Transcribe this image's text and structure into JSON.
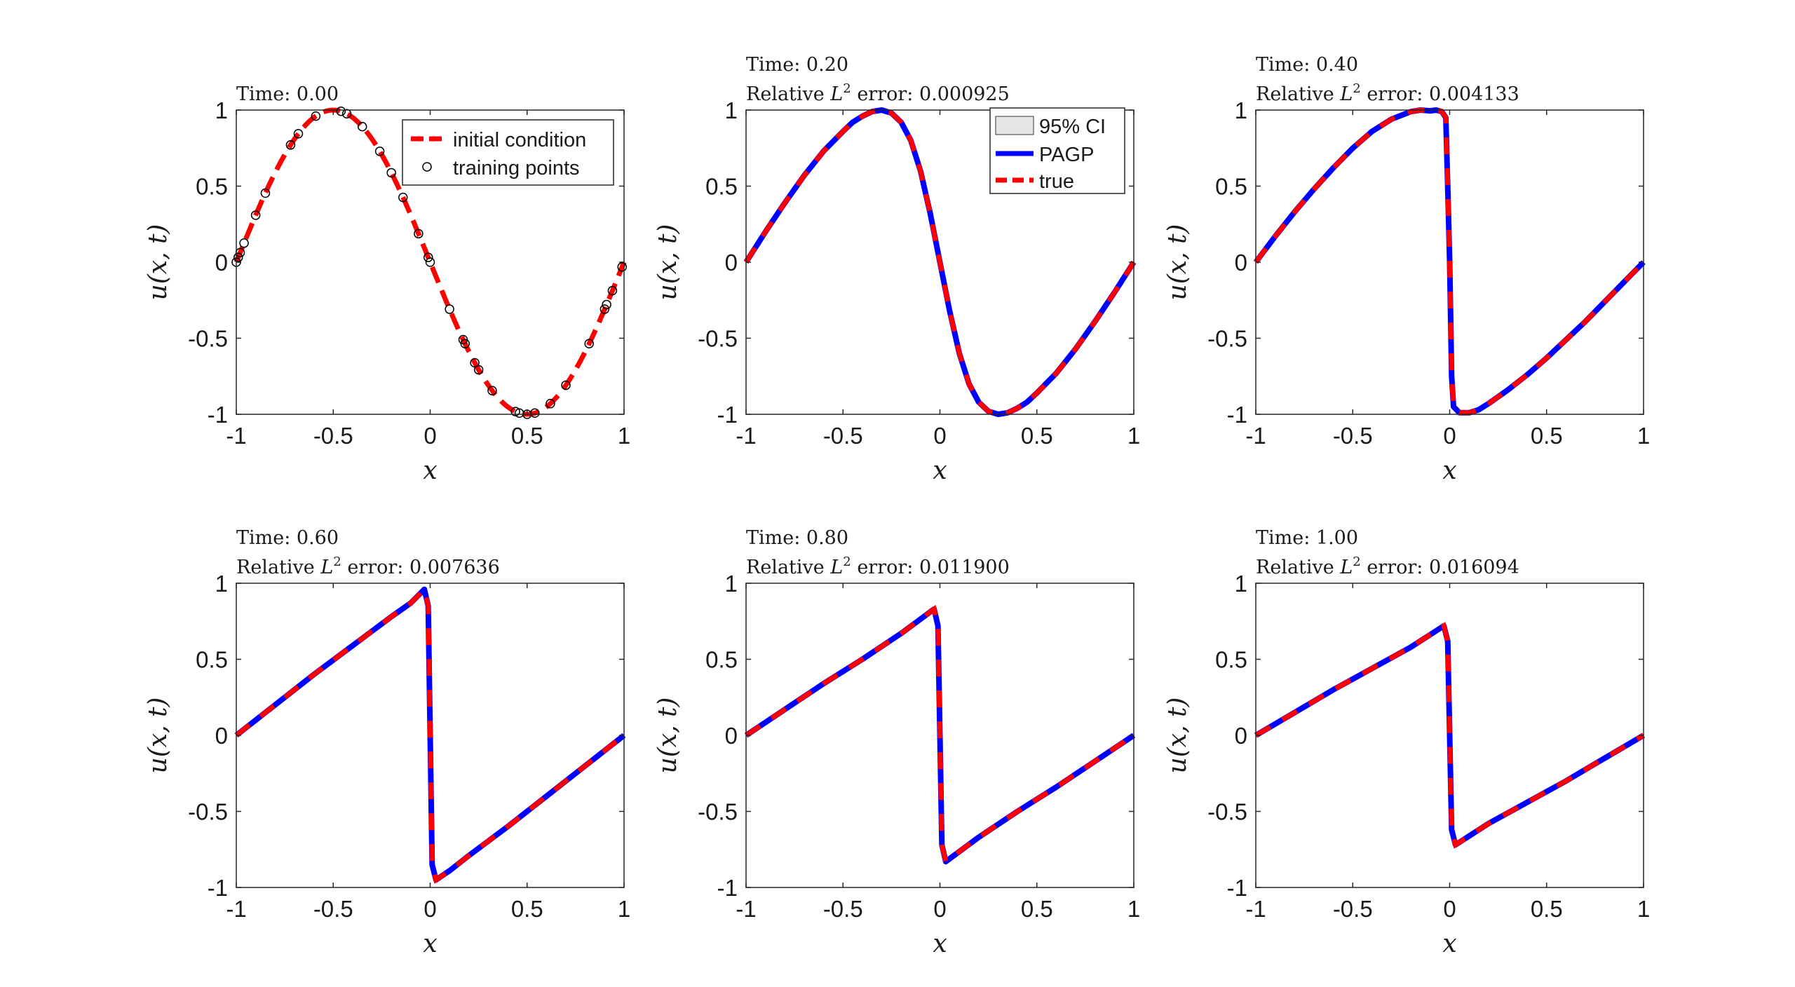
{
  "chart_data": [
    {
      "type": "line",
      "title_time": "Time: 0.00",
      "xlabel": "x",
      "ylabel": "u(x, t)",
      "xlim": [
        -1,
        1
      ],
      "ylim": [
        -1,
        1
      ],
      "xticks": [
        "-1",
        "-0.5",
        "0",
        "0.5",
        "1"
      ],
      "yticks": [
        "-1",
        "-0.5",
        "0",
        "0.5",
        "1"
      ],
      "legend": [
        "initial condition",
        "training points"
      ],
      "series": [
        {
          "name": "initial condition",
          "kind": "sine"
        },
        {
          "name": "training points",
          "kind": "scatter",
          "x": [
            -1.0,
            -0.99,
            -0.98,
            -0.96,
            -0.9,
            -0.85,
            -0.72,
            -0.68,
            -0.59,
            -0.46,
            -0.43,
            -0.35,
            -0.26,
            -0.2,
            -0.14,
            -0.06,
            -0.01,
            0.0,
            0.1,
            0.17,
            0.18,
            0.23,
            0.25,
            0.32,
            0.44,
            0.46,
            0.5,
            0.54,
            0.62,
            0.7,
            0.82,
            0.9,
            0.91,
            0.94,
            0.99
          ]
        }
      ]
    },
    {
      "type": "line",
      "title_time": "Time: 0.20",
      "title_error": "Relative L² error: 0.000925",
      "xlabel": "x",
      "ylabel": "u(x, t)",
      "xlim": [
        -1,
        1
      ],
      "ylim": [
        -1,
        1
      ],
      "xticks": [
        "-1",
        "-0.5",
        "0",
        "0.5",
        "1"
      ],
      "yticks": [
        "-1",
        "-0.5",
        "0",
        "0.5",
        "1"
      ],
      "legend": [
        "95% CI",
        "PAGP",
        "true"
      ],
      "series": [
        {
          "name": "PAGP"
        },
        {
          "name": "true"
        }
      ],
      "x": [
        -1,
        -0.9,
        -0.8,
        -0.7,
        -0.6,
        -0.5,
        -0.45,
        -0.4,
        -0.35,
        -0.3,
        -0.25,
        -0.2,
        -0.15,
        -0.1,
        -0.05,
        0,
        0.05,
        0.1,
        0.15,
        0.2,
        0.25,
        0.3,
        0.35,
        0.4,
        0.45,
        0.5,
        0.6,
        0.7,
        0.8,
        0.9,
        1
      ],
      "y": [
        0,
        0.2,
        0.39,
        0.57,
        0.73,
        0.86,
        0.92,
        0.96,
        0.99,
        1.0,
        0.98,
        0.92,
        0.8,
        0.6,
        0.32,
        0,
        -0.32,
        -0.6,
        -0.8,
        -0.92,
        -0.98,
        -1.0,
        -0.99,
        -0.96,
        -0.92,
        -0.86,
        -0.73,
        -0.57,
        -0.39,
        -0.2,
        0
      ]
    },
    {
      "type": "line",
      "title_time": "Time: 0.40",
      "title_error": "Relative L² error: 0.004133",
      "xlabel": "x",
      "ylabel": "u(x, t)",
      "xlim": [
        -1,
        1
      ],
      "ylim": [
        -1,
        1
      ],
      "xticks": [
        "-1",
        "-0.5",
        "0",
        "0.5",
        "1"
      ],
      "yticks": [
        "-1",
        "-0.5",
        "0",
        "0.5",
        "1"
      ],
      "series": [
        {
          "name": "PAGP"
        },
        {
          "name": "true"
        }
      ],
      "x": [
        -1,
        -0.9,
        -0.8,
        -0.7,
        -0.6,
        -0.5,
        -0.4,
        -0.3,
        -0.2,
        -0.15,
        -0.1,
        -0.07,
        -0.04,
        -0.02,
        -0.01,
        0,
        0.01,
        0.02,
        0.05,
        0.1,
        0.15,
        0.2,
        0.3,
        0.4,
        0.5,
        0.6,
        0.7,
        0.8,
        0.9,
        1
      ],
      "y": [
        0,
        0.17,
        0.33,
        0.48,
        0.62,
        0.75,
        0.86,
        0.94,
        0.99,
        1.0,
        0.995,
        1.0,
        0.99,
        0.95,
        0.5,
        0,
        -0.75,
        -0.95,
        -0.99,
        -0.99,
        -0.97,
        -0.93,
        -0.84,
        -0.74,
        -0.63,
        -0.51,
        -0.39,
        -0.26,
        -0.13,
        0
      ]
    },
    {
      "type": "line",
      "title_time": "Time: 0.60",
      "title_error": "Relative L² error: 0.007636",
      "xlabel": "x",
      "ylabel": "u(x, t)",
      "xlim": [
        -1,
        1
      ],
      "ylim": [
        -1,
        1
      ],
      "xticks": [
        "-1",
        "-0.5",
        "0",
        "0.5",
        "1"
      ],
      "yticks": [
        "-1",
        "-0.5",
        "0",
        "0.5",
        "1"
      ],
      "series": [
        {
          "name": "PAGP"
        },
        {
          "name": "true"
        }
      ],
      "x": [
        -1,
        -0.8,
        -0.6,
        -0.4,
        -0.2,
        -0.1,
        -0.03,
        -0.01,
        0,
        0.01,
        0.03,
        0.1,
        0.2,
        0.4,
        0.6,
        0.8,
        1
      ],
      "y": [
        0,
        0.2,
        0.4,
        0.59,
        0.78,
        0.87,
        0.96,
        0.85,
        0,
        -0.85,
        -0.95,
        -0.89,
        -0.79,
        -0.6,
        -0.4,
        -0.2,
        0
      ]
    },
    {
      "type": "line",
      "title_time": "Time: 0.80",
      "title_error": "Relative L² error: 0.011900",
      "xlabel": "x",
      "ylabel": "u(x, t)",
      "xlim": [
        -1,
        1
      ],
      "ylim": [
        -1,
        1
      ],
      "xticks": [
        "-1",
        "-0.5",
        "0",
        "0.5",
        "1"
      ],
      "yticks": [
        "-1",
        "-0.5",
        "0",
        "0.5",
        "1"
      ],
      "series": [
        {
          "name": "PAGP"
        },
        {
          "name": "true"
        }
      ],
      "x": [
        -1,
        -0.8,
        -0.6,
        -0.4,
        -0.2,
        -0.03,
        -0.01,
        0,
        0.01,
        0.03,
        0.2,
        0.4,
        0.6,
        0.8,
        1
      ],
      "y": [
        0,
        0.17,
        0.34,
        0.5,
        0.67,
        0.83,
        0.72,
        0,
        -0.72,
        -0.83,
        -0.67,
        -0.5,
        -0.34,
        -0.17,
        0
      ]
    },
    {
      "type": "line",
      "title_time": "Time: 1.00",
      "title_error": "Relative L² error: 0.016094",
      "xlabel": "x",
      "ylabel": "u(x, t)",
      "xlim": [
        -1,
        1
      ],
      "ylim": [
        -1,
        1
      ],
      "xticks": [
        "-1",
        "-0.5",
        "0",
        "0.5",
        "1"
      ],
      "yticks": [
        "-1",
        "-0.5",
        "0",
        "0.5",
        "1"
      ],
      "series": [
        {
          "name": "PAGP"
        },
        {
          "name": "true"
        }
      ],
      "x": [
        -1,
        -0.8,
        -0.6,
        -0.4,
        -0.2,
        -0.03,
        -0.01,
        0,
        0.01,
        0.03,
        0.2,
        0.4,
        0.6,
        0.8,
        1
      ],
      "y": [
        0,
        0.15,
        0.3,
        0.44,
        0.58,
        0.72,
        0.62,
        0,
        -0.62,
        -0.72,
        -0.58,
        -0.44,
        -0.3,
        -0.15,
        0
      ]
    }
  ],
  "colors": {
    "true": "#ff0000",
    "pagp": "#0000ff",
    "ci_fill": "#e6e6e6",
    "axis": "#262626"
  }
}
